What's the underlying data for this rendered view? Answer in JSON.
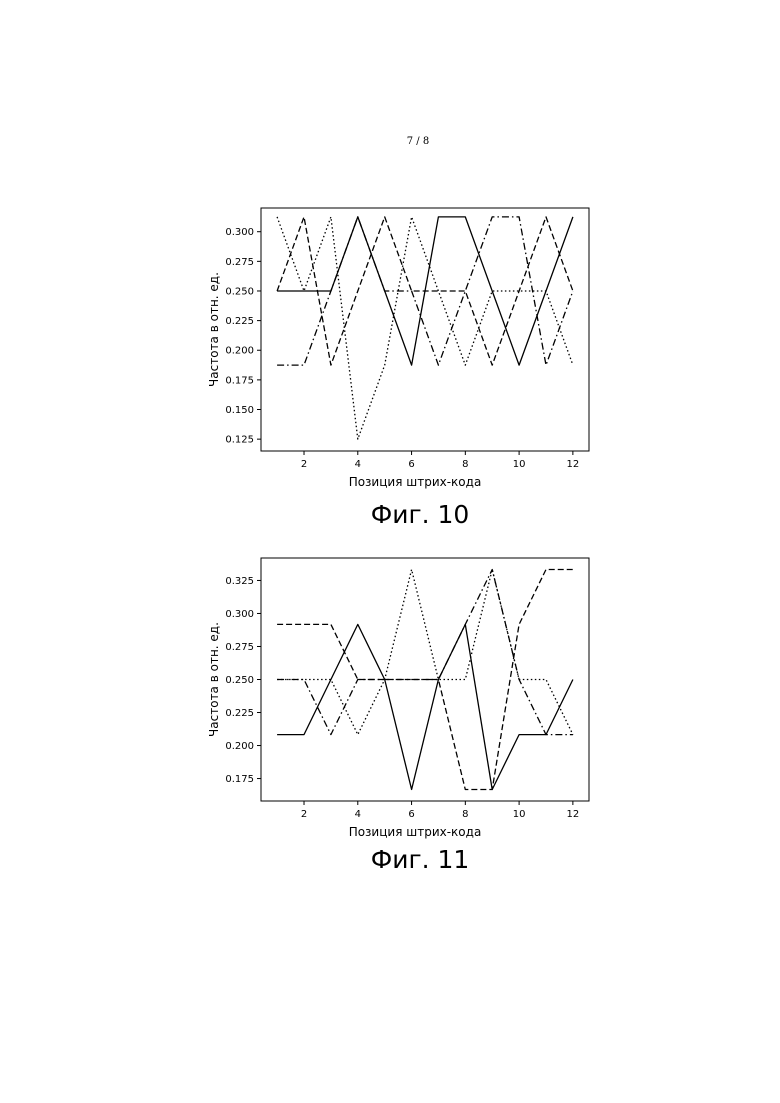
{
  "page_number": "7 / 8",
  "figures": [
    {
      "caption": "Фиг. 10"
    },
    {
      "caption": "Фиг. 11"
    }
  ],
  "chart_data": [
    {
      "type": "line",
      "xlabel": "Позиция штрих-кода",
      "ylabel": "Частота в отн. ед.",
      "xlim": [
        0.4,
        12.6
      ],
      "ylim": [
        0.115,
        0.32
      ],
      "xticks": [
        2,
        4,
        6,
        8,
        10,
        12
      ],
      "yticks": [
        "0.125",
        "0.150",
        "0.175",
        "0.200",
        "0.225",
        "0.250",
        "0.275",
        "0.300"
      ],
      "grid": false,
      "x": [
        1,
        2,
        3,
        4,
        5,
        6,
        7,
        8,
        9,
        10,
        11,
        12
      ],
      "series": [
        {
          "style": "solid",
          "values": [
            0.25,
            0.25,
            0.25,
            0.3125,
            0.25,
            0.1875,
            0.3125,
            0.3125,
            0.25,
            0.1875,
            0.25,
            0.3125
          ]
        },
        {
          "style": "dashed",
          "values": [
            0.25,
            0.3125,
            0.1875,
            0.25,
            0.3125,
            0.25,
            0.25,
            0.25,
            0.1875,
            0.25,
            0.3125,
            0.25
          ]
        },
        {
          "style": "dashdot",
          "values": [
            0.1875,
            0.1875,
            0.25,
            0.3125,
            0.25,
            0.25,
            0.1875,
            0.25,
            0.3125,
            0.3125,
            0.1875,
            0.25
          ]
        },
        {
          "style": "dotted",
          "values": [
            0.3125,
            0.25,
            0.3125,
            0.125,
            0.1875,
            0.3125,
            0.25,
            0.1875,
            0.25,
            0.25,
            0.25,
            0.1875
          ]
        }
      ]
    },
    {
      "type": "line",
      "xlabel": "Позиция штрих-кода",
      "ylabel": "Частота в отн. ед.",
      "xlim": [
        0.4,
        12.6
      ],
      "ylim": [
        0.158,
        0.342
      ],
      "xticks": [
        2,
        4,
        6,
        8,
        10,
        12
      ],
      "yticks": [
        "0.175",
        "0.200",
        "0.225",
        "0.250",
        "0.275",
        "0.300",
        "0.325"
      ],
      "grid": false,
      "x": [
        1,
        2,
        3,
        4,
        5,
        6,
        7,
        8,
        9,
        10,
        11,
        12
      ],
      "series": [
        {
          "style": "solid",
          "values": [
            0.2083,
            0.2083,
            0.25,
            0.2917,
            0.25,
            0.1667,
            0.25,
            0.2917,
            0.1667,
            0.2083,
            0.2083,
            0.25
          ]
        },
        {
          "style": "dashed",
          "values": [
            0.2917,
            0.2917,
            0.2917,
            0.25,
            0.25,
            0.25,
            0.25,
            0.1667,
            0.1667,
            0.2917,
            0.3333,
            0.3333
          ]
        },
        {
          "style": "dashdot",
          "values": [
            0.25,
            0.25,
            0.2083,
            0.25,
            0.25,
            0.25,
            0.25,
            0.2917,
            0.3333,
            0.25,
            0.2083,
            0.2083
          ]
        },
        {
          "style": "dotted",
          "values": [
            0.25,
            0.25,
            0.25,
            0.2083,
            0.25,
            0.3333,
            0.25,
            0.25,
            0.3333,
            0.25,
            0.25,
            0.2083
          ]
        }
      ]
    }
  ]
}
